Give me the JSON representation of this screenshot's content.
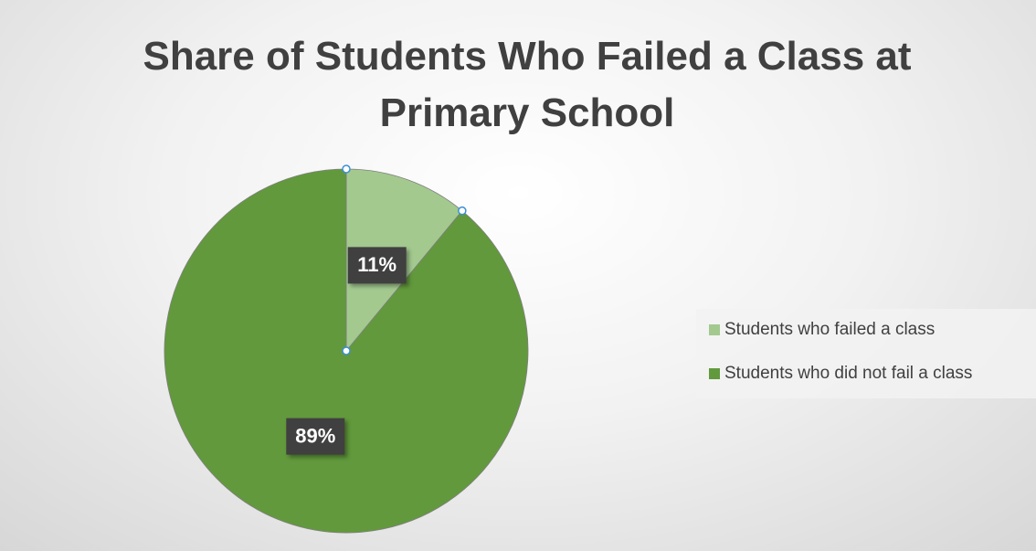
{
  "chart_data": {
    "type": "pie",
    "title": "Share of Students Who Failed a Class at Primary School",
    "categories": [
      "Students who failed a class",
      "Students who did not fail a class"
    ],
    "values": [
      11,
      89
    ],
    "value_labels": [
      "11%",
      "89%"
    ],
    "colors": [
      "#a3c98f",
      "#62993c"
    ],
    "legend": "right"
  }
}
